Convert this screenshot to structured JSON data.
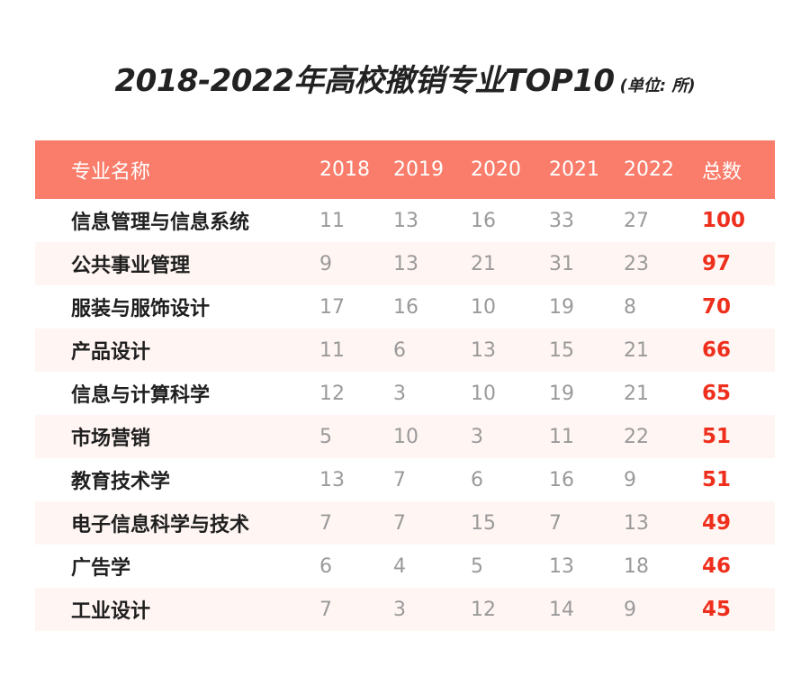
{
  "title": {
    "main": "2018-2022年高校撤销专业TOP10",
    "unit": "(单位: 所)"
  },
  "colors": {
    "header_bg": "#fa7c6a",
    "alt_row_bg": "#fff5f2",
    "total_text": "#ef2f1d",
    "year_text": "#9a9a9a"
  },
  "chart_data": {
    "type": "table",
    "title": "2018-2022年高校撤销专业TOP10",
    "unit": "(单位: 所)",
    "columns": [
      "专业名称",
      "2018",
      "2019",
      "2020",
      "2021",
      "2022",
      "总数"
    ],
    "rows": [
      {
        "name": "信息管理与信息系统",
        "values": [
          "11",
          "13",
          "16",
          "33",
          "27"
        ],
        "total": "100"
      },
      {
        "name": "公共事业管理",
        "values": [
          "9",
          "13",
          "21",
          "31",
          "23"
        ],
        "total": "97"
      },
      {
        "name": "服装与服饰设计",
        "values": [
          "17",
          "16",
          "10",
          "19",
          "8"
        ],
        "total": "70"
      },
      {
        "name": "产品设计",
        "values": [
          "11",
          "6",
          "13",
          "15",
          "21"
        ],
        "total": "66"
      },
      {
        "name": "信息与计算科学",
        "values": [
          "12",
          "3",
          "10",
          "19",
          "21"
        ],
        "total": "65"
      },
      {
        "name": "市场营销",
        "values": [
          "5",
          "10",
          "3",
          "11",
          "22"
        ],
        "total": "51"
      },
      {
        "name": "教育技术学",
        "values": [
          "13",
          "7",
          "6",
          "16",
          "9"
        ],
        "total": "51"
      },
      {
        "name": "电子信息科学与技术",
        "values": [
          "7",
          "7",
          "15",
          "7",
          "13"
        ],
        "total": "49"
      },
      {
        "name": "广告学",
        "values": [
          "6",
          "4",
          "5",
          "13",
          "18"
        ],
        "total": "46"
      },
      {
        "name": "工业设计",
        "values": [
          "7",
          "3",
          "12",
          "14",
          "9"
        ],
        "total": "45"
      }
    ]
  }
}
